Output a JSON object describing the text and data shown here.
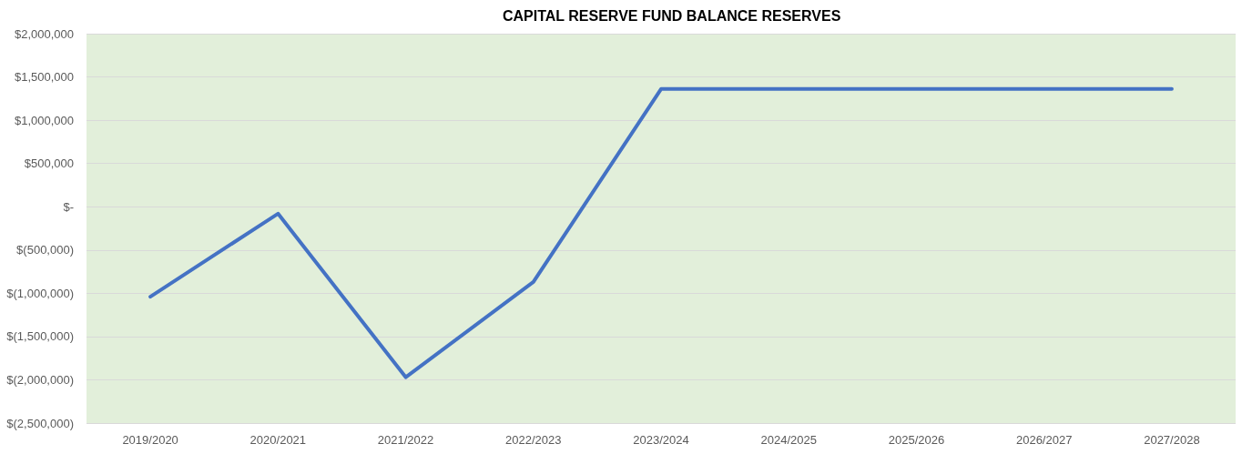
{
  "chart_data": {
    "type": "line",
    "title": "CAPITAL RESERVE FUND BALANCE RESERVES",
    "categories": [
      "2019/2020",
      "2020/2021",
      "2021/2022",
      "2022/2023",
      "2023/2024",
      "2024/2025",
      "2025/2026",
      "2026/2027",
      "2027/2028"
    ],
    "series": [
      {
        "color": "#4472c4",
        "values": [
          -1040000,
          -80000,
          -1970000,
          -870000,
          1360000,
          1360000,
          1360000,
          1360000,
          1360000
        ]
      }
    ],
    "ylim": [
      -2500000,
      2000000
    ],
    "yticks": [
      {
        "value": -2500000,
        "label": "$(2,500,000)"
      },
      {
        "value": -2000000,
        "label": "$(2,000,000)"
      },
      {
        "value": -1500000,
        "label": "$(1,500,000)"
      },
      {
        "value": -1000000,
        "label": "$(1,000,000)"
      },
      {
        "value": -500000,
        "label": "$(500,000)"
      },
      {
        "value": 0,
        "label": "$-"
      },
      {
        "value": 500000,
        "label": "$500,000"
      },
      {
        "value": 1000000,
        "label": "$1,000,000"
      },
      {
        "value": 1500000,
        "label": "$1,500,000"
      },
      {
        "value": 2000000,
        "label": "$2,000,000"
      }
    ],
    "grid": "y",
    "marker": "none",
    "line_style": "solid"
  }
}
